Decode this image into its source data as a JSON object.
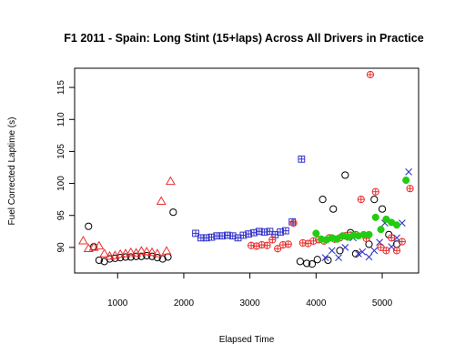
{
  "chart_data": {
    "type": "scatter",
    "title": "F1 2011 - Spain: Long Stint (15+laps) Across All Drivers in Practice",
    "xlabel": "Elapsed Time",
    "ylabel": "Fuel Corrected Laptime (s)",
    "xlim": [
      350,
      5550
    ],
    "ylim": [
      86,
      118
    ],
    "xticks": [
      1000,
      2000,
      3000,
      4000,
      5000
    ],
    "yticks": [
      90,
      95,
      100,
      105,
      110,
      115
    ],
    "grid": false,
    "legend": "none",
    "series": [
      {
        "marker": "circle-open",
        "color": "#000000",
        "points": [
          [
            560,
            93.3
          ],
          [
            640,
            90.1
          ],
          [
            720,
            88.0
          ],
          [
            800,
            87.8
          ],
          [
            880,
            88.2
          ],
          [
            960,
            88.3
          ],
          [
            1040,
            88.4
          ],
          [
            1120,
            88.5
          ],
          [
            1200,
            88.5
          ],
          [
            1280,
            88.6
          ],
          [
            1360,
            88.6
          ],
          [
            1440,
            88.7
          ],
          [
            1520,
            88.6
          ],
          [
            1600,
            88.4
          ],
          [
            1680,
            88.2
          ],
          [
            1760,
            88.5
          ],
          [
            1840,
            95.5
          ],
          [
            3760,
            87.8
          ],
          [
            3860,
            87.5
          ],
          [
            3940,
            87.4
          ],
          [
            4020,
            88.1
          ],
          [
            4100,
            97.5
          ],
          [
            4180,
            88.0
          ],
          [
            4260,
            96.0
          ],
          [
            4360,
            89.5
          ],
          [
            4440,
            101.3
          ],
          [
            4520,
            92.3
          ],
          [
            4600,
            89.0
          ],
          [
            4800,
            90.5
          ],
          [
            4880,
            97.5
          ],
          [
            5000,
            96.0
          ],
          [
            5100,
            92.0
          ],
          [
            5220,
            90.5
          ]
        ]
      },
      {
        "marker": "triangle-open",
        "color": "#e8302f",
        "points": [
          [
            480,
            91.0
          ],
          [
            560,
            89.8
          ],
          [
            640,
            90.0
          ],
          [
            720,
            90.2
          ],
          [
            800,
            89.0
          ],
          [
            880,
            88.6
          ],
          [
            960,
            88.7
          ],
          [
            1040,
            88.9
          ],
          [
            1120,
            89.0
          ],
          [
            1200,
            89.2
          ],
          [
            1280,
            89.1
          ],
          [
            1360,
            89.4
          ],
          [
            1440,
            89.3
          ],
          [
            1520,
            89.2
          ],
          [
            1600,
            89.0
          ],
          [
            1660,
            97.2
          ],
          [
            1740,
            89.4
          ],
          [
            1800,
            100.3
          ]
        ]
      },
      {
        "marker": "square-plus",
        "color": "#3333cc",
        "points": [
          [
            2180,
            92.2
          ],
          [
            2260,
            91.5
          ],
          [
            2340,
            91.5
          ],
          [
            2420,
            91.6
          ],
          [
            2500,
            91.8
          ],
          [
            2580,
            91.8
          ],
          [
            2660,
            91.9
          ],
          [
            2740,
            91.8
          ],
          [
            2820,
            91.5
          ],
          [
            2900,
            91.9
          ],
          [
            2980,
            92.1
          ],
          [
            3060,
            92.3
          ],
          [
            3140,
            92.5
          ],
          [
            3220,
            92.4
          ],
          [
            3300,
            92.5
          ],
          [
            3380,
            92.0
          ],
          [
            3460,
            92.4
          ],
          [
            3540,
            92.6
          ],
          [
            3640,
            94.0
          ],
          [
            3780,
            103.8
          ]
        ]
      },
      {
        "marker": "circle-plus",
        "color": "#e8302f",
        "points": [
          [
            3020,
            90.3
          ],
          [
            3100,
            90.2
          ],
          [
            3180,
            90.4
          ],
          [
            3260,
            90.3
          ],
          [
            3340,
            91.2
          ],
          [
            3420,
            89.8
          ],
          [
            3500,
            90.4
          ],
          [
            3580,
            90.5
          ],
          [
            3660,
            93.8
          ],
          [
            3800,
            90.7
          ],
          [
            3880,
            90.6
          ],
          [
            3960,
            91.0
          ],
          [
            4040,
            91.2
          ],
          [
            4120,
            91.0
          ],
          [
            4200,
            91.5
          ],
          [
            4280,
            91.3
          ],
          [
            4360,
            91.5
          ],
          [
            4440,
            91.8
          ],
          [
            4520,
            91.9
          ],
          [
            4600,
            92.0
          ],
          [
            4680,
            97.5
          ],
          [
            4760,
            91.4
          ],
          [
            4820,
            117.0
          ],
          [
            4900,
            98.7
          ],
          [
            4980,
            90.0
          ],
          [
            5060,
            89.5
          ],
          [
            5140,
            91.5
          ],
          [
            5220,
            89.5
          ],
          [
            5300,
            90.9
          ],
          [
            5420,
            99.2
          ]
        ]
      },
      {
        "marker": "x",
        "color": "#3333cc",
        "points": [
          [
            4140,
            88.4
          ],
          [
            4240,
            89.5
          ],
          [
            4340,
            88.4
          ],
          [
            4440,
            90.0
          ],
          [
            4560,
            91.5
          ],
          [
            4640,
            89.0
          ],
          [
            4700,
            89.3
          ],
          [
            4800,
            88.5
          ],
          [
            4880,
            89.5
          ],
          [
            4960,
            90.8
          ],
          [
            5040,
            93.8
          ],
          [
            5140,
            90.1
          ],
          [
            5220,
            91.5
          ],
          [
            5300,
            93.8
          ],
          [
            5400,
            101.8
          ]
        ]
      },
      {
        "marker": "circle-filled",
        "color": "#22cc11",
        "points": [
          [
            4000,
            92.2
          ],
          [
            4080,
            91.3
          ],
          [
            4160,
            91.2
          ],
          [
            4240,
            91.5
          ],
          [
            4320,
            91.3
          ],
          [
            4400,
            91.8
          ],
          [
            4480,
            91.6
          ],
          [
            4560,
            91.9
          ],
          [
            4640,
            91.8
          ],
          [
            4720,
            92.0
          ],
          [
            4800,
            92.0
          ],
          [
            4900,
            94.7
          ],
          [
            4980,
            92.8
          ],
          [
            5060,
            94.4
          ],
          [
            5140,
            93.9
          ],
          [
            5220,
            93.5
          ],
          [
            5360,
            100.5
          ]
        ]
      }
    ]
  }
}
